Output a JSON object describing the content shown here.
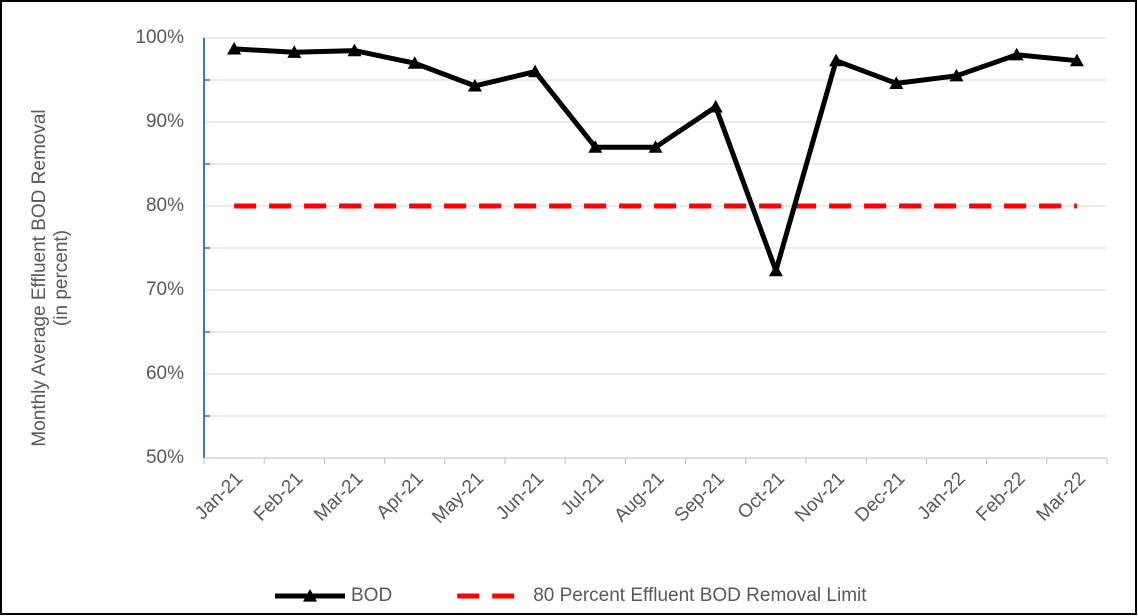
{
  "chart_data": {
    "type": "line",
    "ylabel": [
      "Monthly Average Effluent BOD Removal",
      "(in percent)"
    ],
    "categories": [
      "Jan-21",
      "Feb-21",
      "Mar-21",
      "Apr-21",
      "May-21",
      "Jun-21",
      "Jul-21",
      "Aug-21",
      "Sep-21",
      "Oct-21",
      "Nov-21",
      "Dec-21",
      "Jan-22",
      "Feb-22",
      "Mar-22"
    ],
    "series": [
      {
        "name": "BOD",
        "color": "#000000",
        "marker": "triangle",
        "dashed": false,
        "values": [
          98.7,
          98.3,
          98.5,
          97.0,
          94.3,
          96.0,
          87.0,
          87.0,
          91.8,
          72.3,
          97.3,
          94.6,
          95.5,
          98.0,
          97.3
        ]
      },
      {
        "name": "80 Percent Effluent BOD Removal Limit",
        "color": "#ff0000",
        "marker": null,
        "dashed": true,
        "values": [
          80,
          80,
          80,
          80,
          80,
          80,
          80,
          80,
          80,
          80,
          80,
          80,
          80,
          80,
          80
        ]
      }
    ],
    "ylim": [
      50,
      100
    ],
    "yticks": [
      {
        "value": 50,
        "label": "50%"
      },
      {
        "value": 60,
        "label": "60%"
      },
      {
        "value": 70,
        "label": "70%"
      },
      {
        "value": 80,
        "label": "80%"
      },
      {
        "value": 90,
        "label": "90%"
      },
      {
        "value": 100,
        "label": "100%"
      }
    ],
    "minor_yticks": [
      55,
      65,
      75,
      85,
      95
    ],
    "grid": true,
    "legend": "bottom"
  }
}
